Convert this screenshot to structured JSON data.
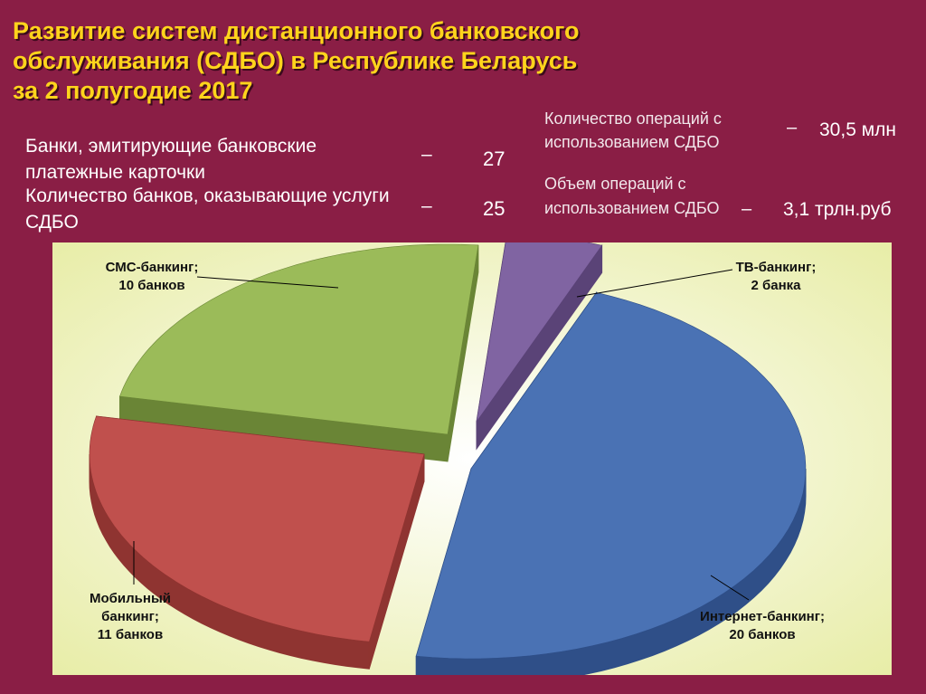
{
  "title": {
    "line1": "Развитие систем дистанционного банковского",
    "line2": "обслуживания (СДБО) в Республике Беларусь",
    "line3": "за 2 полугодие 2017"
  },
  "stats": {
    "cards": {
      "label": "Банки, эмитирующие банковские платежные карточки",
      "dash": "–",
      "value": "27"
    },
    "banks": {
      "label": "Количество банков, оказывающие услуги СДБО",
      "dash": "–",
      "value": "25"
    },
    "ops": {
      "label": "Количество операций с использованием СДБО",
      "dash": "–",
      "value": "30,5 млн"
    },
    "volume": {
      "label": "Объем операций с использованием СДБО",
      "dash": "–",
      "value": "3,1 трлн.руб"
    }
  },
  "chart_data": {
    "type": "pie",
    "style": "3d-exploded",
    "categories": [
      "Интернет-банкинг",
      "Мобильный банкинг",
      "СМС-банкинг",
      "ТВ-банкинг"
    ],
    "values": [
      20,
      11,
      10,
      2
    ],
    "slices": [
      {
        "name": "Интернет-банкинг",
        "value": 20,
        "label_lines": [
          "Интернет-банкинг;",
          "20 банков"
        ],
        "color": "#4a72b4",
        "side": "#2f4f88"
      },
      {
        "name": "Мобильный банкинг",
        "value": 11,
        "label_lines": [
          "Мобильный",
          "банкинг;",
          "11 банков"
        ],
        "color": "#c0504d",
        "side": "#8f3431"
      },
      {
        "name": "СМС-банкинг",
        "value": 10,
        "label_lines": [
          "СМС-банкинг;",
          "10 банков"
        ],
        "color": "#9bbb59",
        "side": "#6a8536"
      },
      {
        "name": "ТВ-банкинг",
        "value": 2,
        "label_lines": [
          "ТВ-банкинг;",
          "2 банка"
        ],
        "color": "#8064a2",
        "side": "#5a4377"
      }
    ],
    "panel_colors": {
      "inner": "#ffffff",
      "outer": "#e8eda8"
    }
  }
}
